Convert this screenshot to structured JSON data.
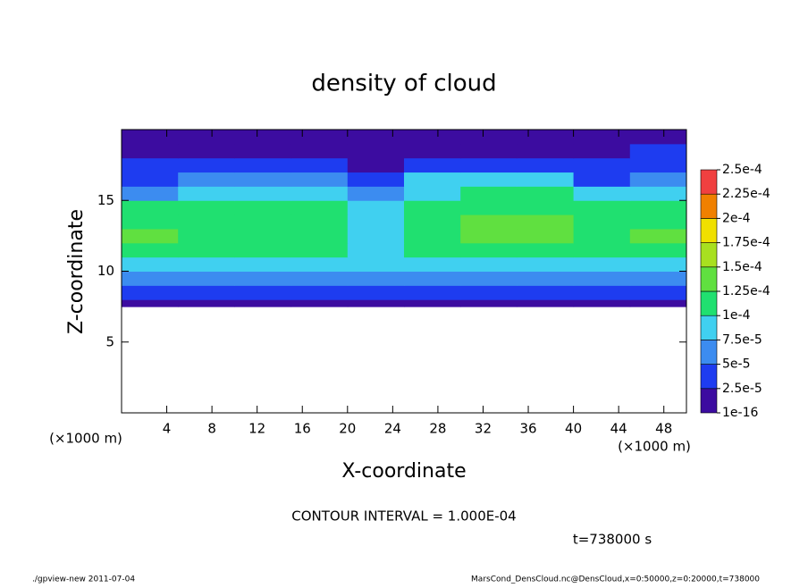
{
  "chart_data": {
    "type": "heatmap",
    "title": "density of cloud",
    "x_label": "X-coordinate",
    "y_label": "Z-coordinate",
    "x_unit": "(×1000 m)",
    "y_unit": "(×1000 m)",
    "contour_note": "CONTOUR INTERVAL = 1.000E-04",
    "time_note": "t=738000 s",
    "footer_left": "./gpview-new  2011-07-04",
    "footer_right": "MarsCond_DensCloud.nc@DensCloud,x=0:50000,z=0:20000,t=738000",
    "xlim": [
      0,
      50
    ],
    "ylim": [
      0,
      20
    ],
    "xticks": [
      4,
      8,
      12,
      16,
      20,
      24,
      28,
      32,
      36,
      40,
      44,
      48
    ],
    "yticks": [
      5,
      10,
      15
    ],
    "xbins": [
      0,
      5,
      10,
      15,
      20,
      25,
      30,
      35,
      40,
      45,
      50
    ],
    "ybins": [
      7.5,
      8,
      9,
      10,
      11,
      12,
      13,
      14,
      15,
      16,
      17,
      18,
      19,
      20
    ],
    "z": [
      [
        1.5e-05,
        1.5e-05,
        1.5e-05,
        1.5e-05,
        1.5e-05,
        1.5e-05,
        1.5e-05,
        1.5e-05,
        1.5e-05,
        1.5e-05
      ],
      [
        3e-05,
        3e-05,
        3e-05,
        3e-05,
        3e-05,
        3e-05,
        3e-05,
        3e-05,
        3e-05,
        3e-05
      ],
      [
        6e-05,
        6e-05,
        6e-05,
        6e-05,
        6e-05,
        6e-05,
        6e-05,
        6e-05,
        6e-05,
        6e-05
      ],
      [
        9e-05,
        9e-05,
        9e-05,
        9e-05,
        9e-05,
        9e-05,
        9e-05,
        9e-05,
        9e-05,
        9e-05
      ],
      [
        0.000115,
        0.00011,
        0.00011,
        0.000105,
        9e-05,
        0.000115,
        0.000115,
        0.000115,
        0.00011,
        0.00011
      ],
      [
        0.00013,
        0.00012,
        0.00012,
        0.000115,
        9e-05,
        0.00012,
        0.00013,
        0.00013,
        0.00012,
        0.00013
      ],
      [
        0.00012,
        0.000115,
        0.000115,
        0.00011,
        9e-05,
        0.00012,
        0.000125,
        0.000125,
        0.000115,
        0.00012
      ],
      [
        0.000105,
        0.000105,
        0.000105,
        0.000105,
        8.5e-05,
        0.00011,
        0.000115,
        0.000115,
        0.000105,
        0.000105
      ],
      [
        6.5e-05,
        8e-05,
        8e-05,
        8e-05,
        6.5e-05,
        9e-05,
        0.000105,
        0.000105,
        8e-05,
        8e-05
      ],
      [
        4e-05,
        6e-05,
        6e-05,
        5e-05,
        3e-05,
        8e-05,
        8e-05,
        8e-05,
        4e-05,
        6e-05
      ],
      [
        3e-05,
        3e-05,
        4e-05,
        3e-05,
        2e-05,
        3e-05,
        4e-05,
        4e-05,
        3e-05,
        4e-05
      ],
      [
        2e-05,
        1.5e-05,
        2e-05,
        2e-05,
        1.5e-05,
        2e-05,
        2e-05,
        2e-05,
        2e-05,
        3e-05
      ],
      [
        1e-05,
        1e-05,
        1e-05,
        1e-05,
        1e-05,
        1e-05,
        1e-05,
        1e-05,
        1.5e-05,
        2e-05
      ]
    ],
    "levels": [
      {
        "value": 1e-16,
        "label": "1e-16"
      },
      {
        "value": 2.5e-05,
        "label": "2.5e-5"
      },
      {
        "value": 5e-05,
        "label": "5e-5"
      },
      {
        "value": 7.5e-05,
        "label": "7.5e-5"
      },
      {
        "value": 0.0001,
        "label": "1e-4"
      },
      {
        "value": 0.000125,
        "label": "1.25e-4"
      },
      {
        "value": 0.00015,
        "label": "1.5e-4"
      },
      {
        "value": 0.000175,
        "label": "1.75e-4"
      },
      {
        "value": 0.0002,
        "label": "2e-4"
      },
      {
        "value": 0.000225,
        "label": "2.25e-4"
      },
      {
        "value": 0.00025,
        "label": "2.5e-4"
      }
    ],
    "colors": [
      "#3c0ca0",
      "#1e3cf0",
      "#3c8cf0",
      "#40d0f0",
      "#20e070",
      "#60e040",
      "#a8e020",
      "#f0e000",
      "#f08000",
      "#f04040"
    ]
  }
}
